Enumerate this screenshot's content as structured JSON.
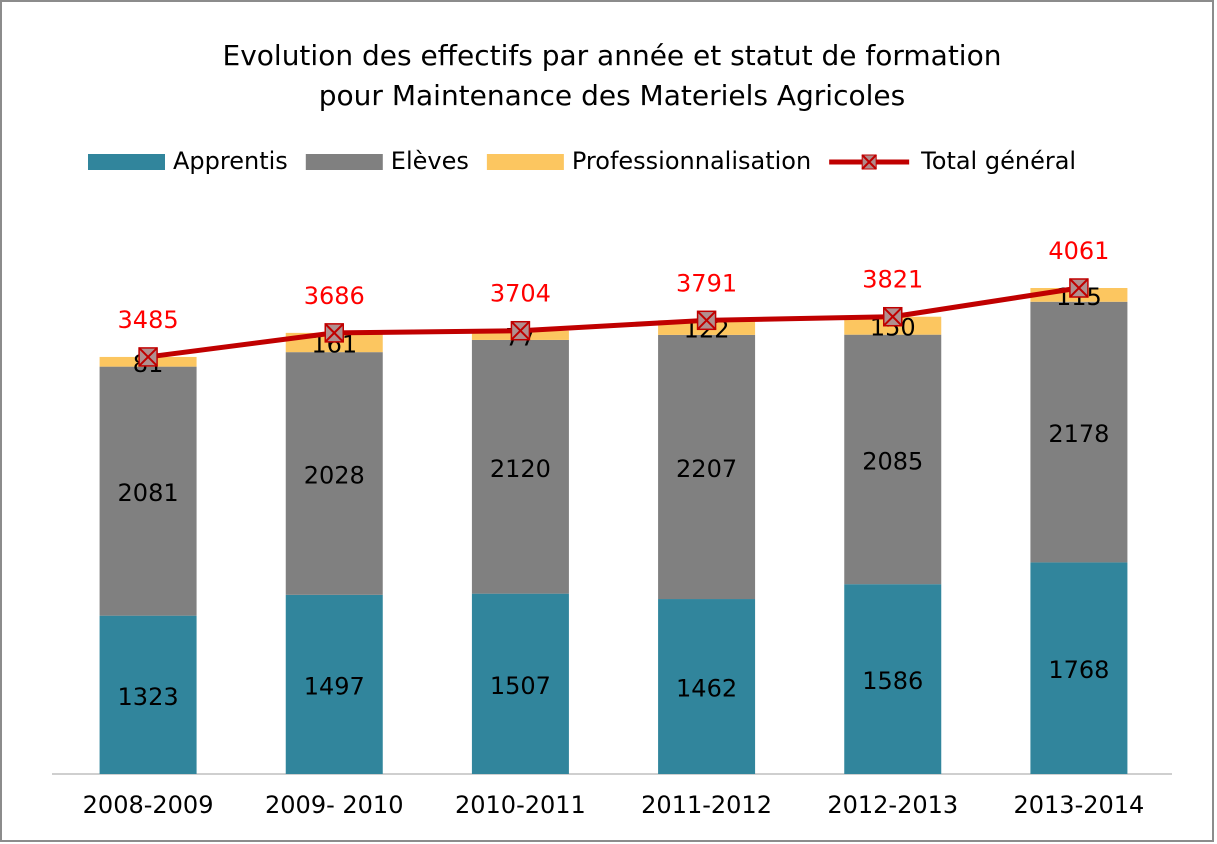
{
  "chart_data": {
    "type": "bar",
    "stacked": true,
    "title": [
      "Evolution des effectifs par année et statut de formation",
      "pour Maintenance des Materiels Agricoles"
    ],
    "categories": [
      "2008-2009",
      "2009- 2010",
      "2010-2011",
      "2011-2012",
      "2012-2013",
      "2013-2014"
    ],
    "series": [
      {
        "name": "Apprentis",
        "color": "#31859c",
        "values": [
          1323,
          1497,
          1507,
          1462,
          1586,
          1768
        ]
      },
      {
        "name": "Elèves",
        "color": "#808080",
        "values": [
          2081,
          2028,
          2120,
          2207,
          2085,
          2178
        ]
      },
      {
        "name": "Professionnalisation",
        "color": "#fcc660",
        "values": [
          81,
          161,
          77,
          122,
          150,
          115
        ]
      },
      {
        "name": "Total général",
        "color": "#c00000",
        "type": "line",
        "values": [
          3485,
          3686,
          3704,
          3791,
          3821,
          4061
        ]
      }
    ],
    "legend": "top"
  }
}
